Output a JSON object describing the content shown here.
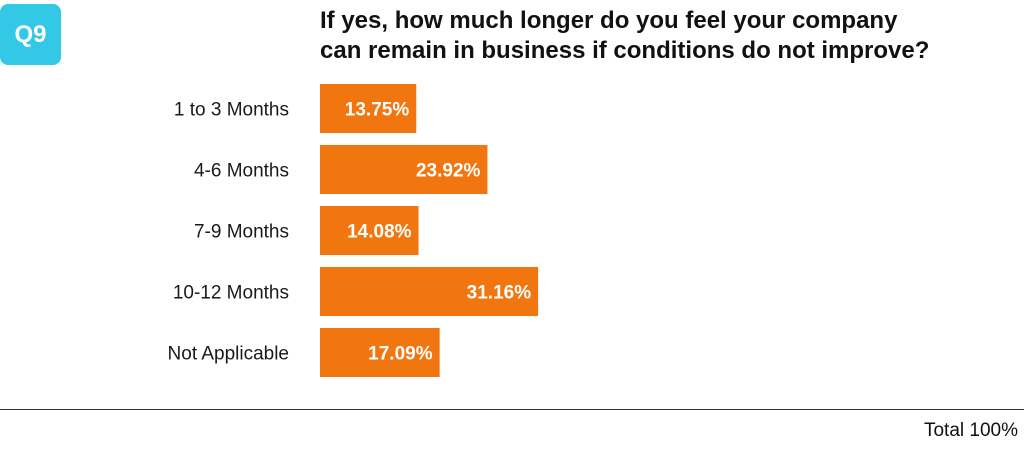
{
  "badge": {
    "text": "Q9",
    "color": "#33c9e6"
  },
  "title": {
    "line1": "If yes, how much longer do you feel your company",
    "line2": "can remain in business if conditions do not improve?"
  },
  "chart_data": {
    "type": "bar",
    "orientation": "horizontal",
    "categories": [
      "1 to 3 Months",
      "4-6 Months",
      "7-9 Months",
      "10-12 Months",
      "Not Applicable"
    ],
    "values": [
      13.75,
      23.92,
      14.08,
      31.16,
      17.09
    ],
    "value_labels": [
      "13.75%",
      "23.92%",
      "14.08%",
      "31.16%",
      "17.09%"
    ],
    "unit": "%",
    "bar_color": "#f2760f",
    "grid": false,
    "legend": "none"
  },
  "footer": {
    "total": "Total 100%"
  }
}
